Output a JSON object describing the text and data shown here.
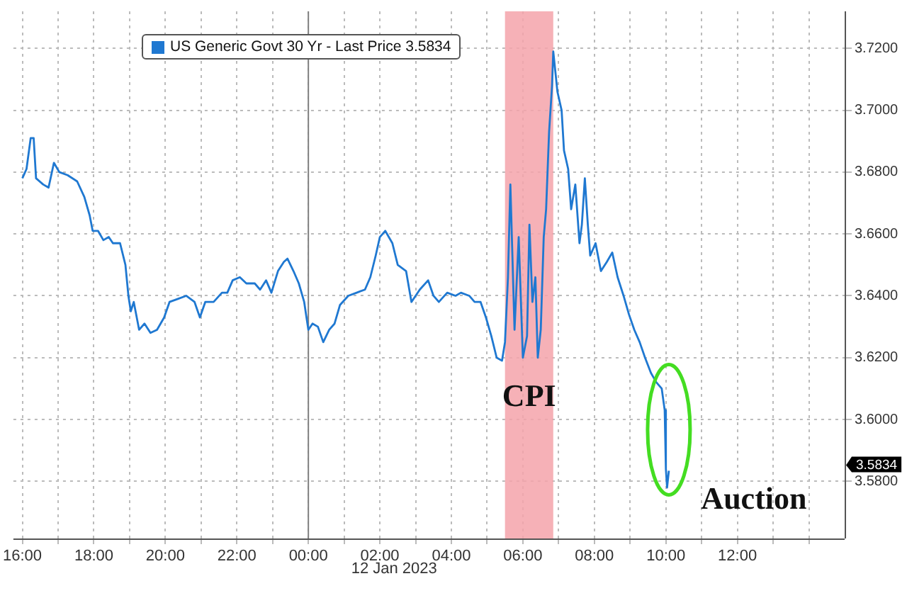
{
  "chart_data": {
    "type": "line",
    "x": [
      "2023-01-11T16:00",
      "2023-01-11T16:07",
      "2023-01-11T16:14",
      "2023-01-11T16:19",
      "2023-01-11T16:23",
      "2023-01-11T16:35",
      "2023-01-11T16:44",
      "2023-01-11T16:53",
      "2023-01-11T17:02",
      "2023-01-11T17:16",
      "2023-01-11T17:32",
      "2023-01-11T17:44",
      "2023-01-11T17:53",
      "2023-01-11T17:58",
      "2023-01-11T18:07",
      "2023-01-11T18:16",
      "2023-01-11T18:25",
      "2023-01-11T18:32",
      "2023-01-11T18:44",
      "2023-01-11T18:53",
      "2023-01-11T18:58",
      "2023-01-11T19:02",
      "2023-01-11T19:07",
      "2023-01-11T19:16",
      "2023-01-11T19:25",
      "2023-01-11T19:35",
      "2023-01-11T19:46",
      "2023-01-11T19:58",
      "2023-01-11T20:07",
      "2023-01-11T20:21",
      "2023-01-11T20:35",
      "2023-01-11T20:49",
      "2023-01-11T20:58",
      "2023-01-11T21:07",
      "2023-01-11T21:21",
      "2023-01-11T21:35",
      "2023-01-11T21:44",
      "2023-01-11T21:53",
      "2023-01-11T22:05",
      "2023-01-11T22:16",
      "2023-01-11T22:30",
      "2023-01-11T22:39",
      "2023-01-11T22:49",
      "2023-01-11T22:58",
      "2023-01-11T23:09",
      "2023-01-11T23:19",
      "2023-01-11T23:25",
      "2023-01-11T23:35",
      "2023-01-11T23:44",
      "2023-01-11T23:53",
      "2023-01-12T00:00",
      "2023-01-12T00:07",
      "2023-01-12T00:16",
      "2023-01-12T00:25",
      "2023-01-12T00:35",
      "2023-01-12T00:44",
      "2023-01-12T00:53",
      "2023-01-12T01:07",
      "2023-01-12T01:21",
      "2023-01-12T01:35",
      "2023-01-12T01:44",
      "2023-01-12T01:53",
      "2023-01-12T02:00",
      "2023-01-12T02:09",
      "2023-01-12T02:21",
      "2023-01-12T02:30",
      "2023-01-12T02:44",
      "2023-01-12T02:53",
      "2023-01-12T03:07",
      "2023-01-12T03:21",
      "2023-01-12T03:30",
      "2023-01-12T03:39",
      "2023-01-12T03:53",
      "2023-01-12T04:07",
      "2023-01-12T04:16",
      "2023-01-12T04:30",
      "2023-01-12T04:39",
      "2023-01-12T04:49",
      "2023-01-12T04:58",
      "2023-01-12T05:07",
      "2023-01-12T05:16",
      "2023-01-12T05:25",
      "2023-01-12T05:30",
      "2023-01-12T05:35",
      "2023-01-12T05:39",
      "2023-01-12T05:46",
      "2023-01-12T05:53",
      "2023-01-12T06:00",
      "2023-01-12T06:07",
      "2023-01-12T06:11",
      "2023-01-12T06:16",
      "2023-01-12T06:21",
      "2023-01-12T06:25",
      "2023-01-12T06:30",
      "2023-01-12T06:35",
      "2023-01-12T06:39",
      "2023-01-12T06:44",
      "2023-01-12T06:49",
      "2023-01-12T06:51",
      "2023-01-12T06:58",
      "2023-01-12T07:05",
      "2023-01-12T07:09",
      "2023-01-12T07:16",
      "2023-01-12T07:21",
      "2023-01-12T07:28",
      "2023-01-12T07:35",
      "2023-01-12T07:39",
      "2023-01-12T07:44",
      "2023-01-12T07:49",
      "2023-01-12T07:53",
      "2023-01-12T08:02",
      "2023-01-12T08:11",
      "2023-01-12T08:21",
      "2023-01-12T08:30",
      "2023-01-12T08:39",
      "2023-01-12T08:49",
      "2023-01-12T08:58",
      "2023-01-12T09:07",
      "2023-01-12T09:16",
      "2023-01-12T09:25",
      "2023-01-12T09:35",
      "2023-01-12T09:44",
      "2023-01-12T09:53",
      "2023-01-12T09:58",
      "2023-01-12T10:00",
      "2023-01-12T10:02",
      "2023-01-12T10:05"
    ],
    "series": [
      {
        "name": "US Generic Govt 30 Yr - Last Price 3.5834",
        "color": "#1f78d1",
        "values": [
          3.678,
          3.681,
          3.691,
          3.691,
          3.678,
          3.676,
          3.675,
          3.683,
          3.68,
          3.679,
          3.677,
          3.672,
          3.666,
          3.661,
          3.661,
          3.658,
          3.659,
          3.657,
          3.657,
          3.65,
          3.64,
          3.635,
          3.638,
          3.629,
          3.631,
          3.628,
          3.629,
          3.633,
          3.638,
          3.639,
          3.64,
          3.638,
          3.633,
          3.638,
          3.638,
          3.641,
          3.641,
          3.645,
          3.646,
          3.644,
          3.644,
          3.642,
          3.645,
          3.641,
          3.648,
          3.651,
          3.652,
          3.648,
          3.644,
          3.638,
          3.629,
          3.631,
          3.63,
          3.625,
          3.629,
          3.631,
          3.637,
          3.64,
          3.641,
          3.642,
          3.646,
          3.653,
          3.659,
          3.661,
          3.657,
          3.65,
          3.648,
          3.638,
          3.642,
          3.645,
          3.64,
          3.638,
          3.641,
          3.64,
          3.641,
          3.64,
          3.638,
          3.638,
          3.633,
          3.627,
          3.62,
          3.619,
          3.625,
          3.646,
          3.676,
          3.629,
          3.659,
          3.62,
          3.627,
          3.663,
          3.638,
          3.646,
          3.62,
          3.629,
          3.659,
          3.668,
          3.693,
          3.708,
          3.719,
          3.706,
          3.7,
          3.687,
          3.681,
          3.668,
          3.676,
          3.657,
          3.663,
          3.678,
          3.663,
          3.653,
          3.657,
          3.648,
          3.651,
          3.654,
          3.646,
          3.64,
          3.634,
          3.629,
          3.625,
          3.62,
          3.615,
          3.612,
          3.61,
          3.603,
          3.584,
          3.578,
          3.5834
        ]
      }
    ],
    "xlim": [
      "2023-01-11T15:45",
      "2023-01-12T15:00"
    ],
    "xticks": [
      {
        "value": "2023-01-11T16:00",
        "label": "16:00"
      },
      {
        "value": "2023-01-11T17:00",
        "label": null
      },
      {
        "value": "2023-01-11T18:00",
        "label": "18:00"
      },
      {
        "value": "2023-01-11T19:00",
        "label": null
      },
      {
        "value": "2023-01-11T20:00",
        "label": "20:00"
      },
      {
        "value": "2023-01-11T21:00",
        "label": null
      },
      {
        "value": "2023-01-11T22:00",
        "label": "22:00"
      },
      {
        "value": "2023-01-11T23:00",
        "label": null
      },
      {
        "value": "2023-01-12T00:00",
        "label": "00:00"
      },
      {
        "value": "2023-01-12T01:00",
        "label": null
      },
      {
        "value": "2023-01-12T02:00",
        "label": "02:00"
      },
      {
        "value": "2023-01-12T03:00",
        "label": null
      },
      {
        "value": "2023-01-12T04:00",
        "label": "04:00"
      },
      {
        "value": "2023-01-12T05:00",
        "label": null
      },
      {
        "value": "2023-01-12T06:00",
        "label": "06:00"
      },
      {
        "value": "2023-01-12T07:00",
        "label": null
      },
      {
        "value": "2023-01-12T08:00",
        "label": "08:00"
      },
      {
        "value": "2023-01-12T09:00",
        "label": null
      },
      {
        "value": "2023-01-12T10:00",
        "label": "10:00"
      },
      {
        "value": "2023-01-12T11:00",
        "label": null
      },
      {
        "value": "2023-01-12T12:00",
        "label": "12:00"
      },
      {
        "value": "2023-01-12T13:00",
        "label": null
      },
      {
        "value": "2023-01-12T14:00",
        "label": null
      }
    ],
    "ylim": [
      3.5615,
      3.732
    ],
    "yticks": [
      {
        "value": 3.58,
        "label": "3.5800"
      },
      {
        "value": 3.6,
        "label": "3.6000"
      },
      {
        "value": 3.62,
        "label": "3.6200"
      },
      {
        "value": 3.64,
        "label": "3.6400"
      },
      {
        "value": 3.66,
        "label": "3.6600"
      },
      {
        "value": 3.68,
        "label": "3.6800"
      },
      {
        "value": 3.7,
        "label": "3.7000"
      },
      {
        "value": 3.72,
        "label": "3.7200"
      }
    ],
    "grid": true,
    "legend": "top",
    "marker": "none",
    "line_style": "solid",
    "ref_lines": [
      {
        "axis": "x",
        "value": "2023-01-12T00:00",
        "color": "#808080"
      }
    ],
    "bands": [
      {
        "axis": "x",
        "from": "2023-01-12T05:30",
        "to": "2023-01-12T06:51",
        "color": "#f4a3aa"
      }
    ],
    "annotations": [
      "12 Jan 2023",
      "CPI",
      "Auction",
      "3.5834"
    ]
  }
}
